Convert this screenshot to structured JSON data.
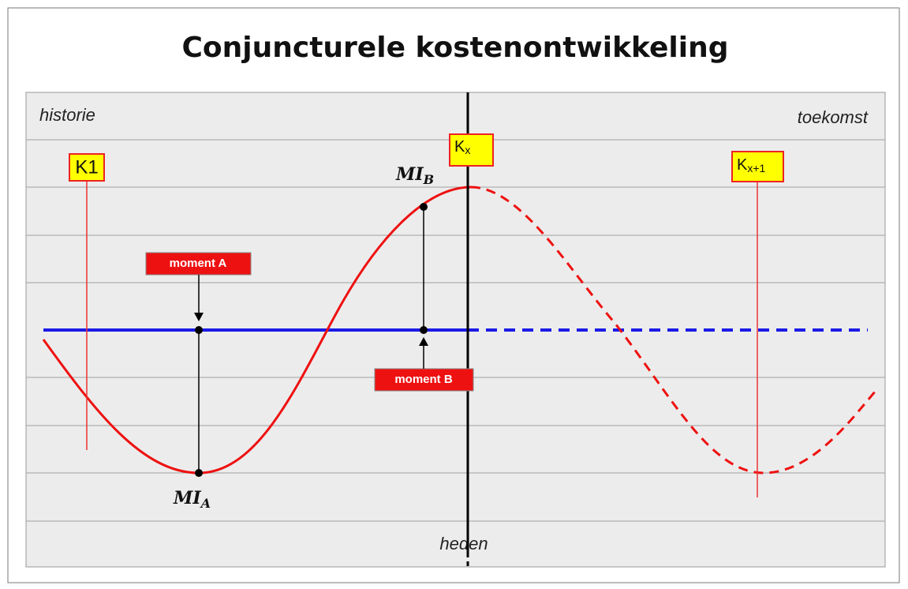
{
  "title": "Conjuncturele kostenontwikkeling",
  "labels": {
    "past": "historie",
    "future": "toekomst",
    "present": "heden"
  },
  "markers": [
    {
      "base": "K1"
    },
    {
      "base": "K",
      "sub": "x"
    },
    {
      "base": "K",
      "sub": "x+1"
    }
  ],
  "points": [
    {
      "base": "MI",
      "sub": "A"
    },
    {
      "base": "MI",
      "sub": "B"
    }
  ],
  "moments": [
    "moment A",
    "moment B"
  ]
}
